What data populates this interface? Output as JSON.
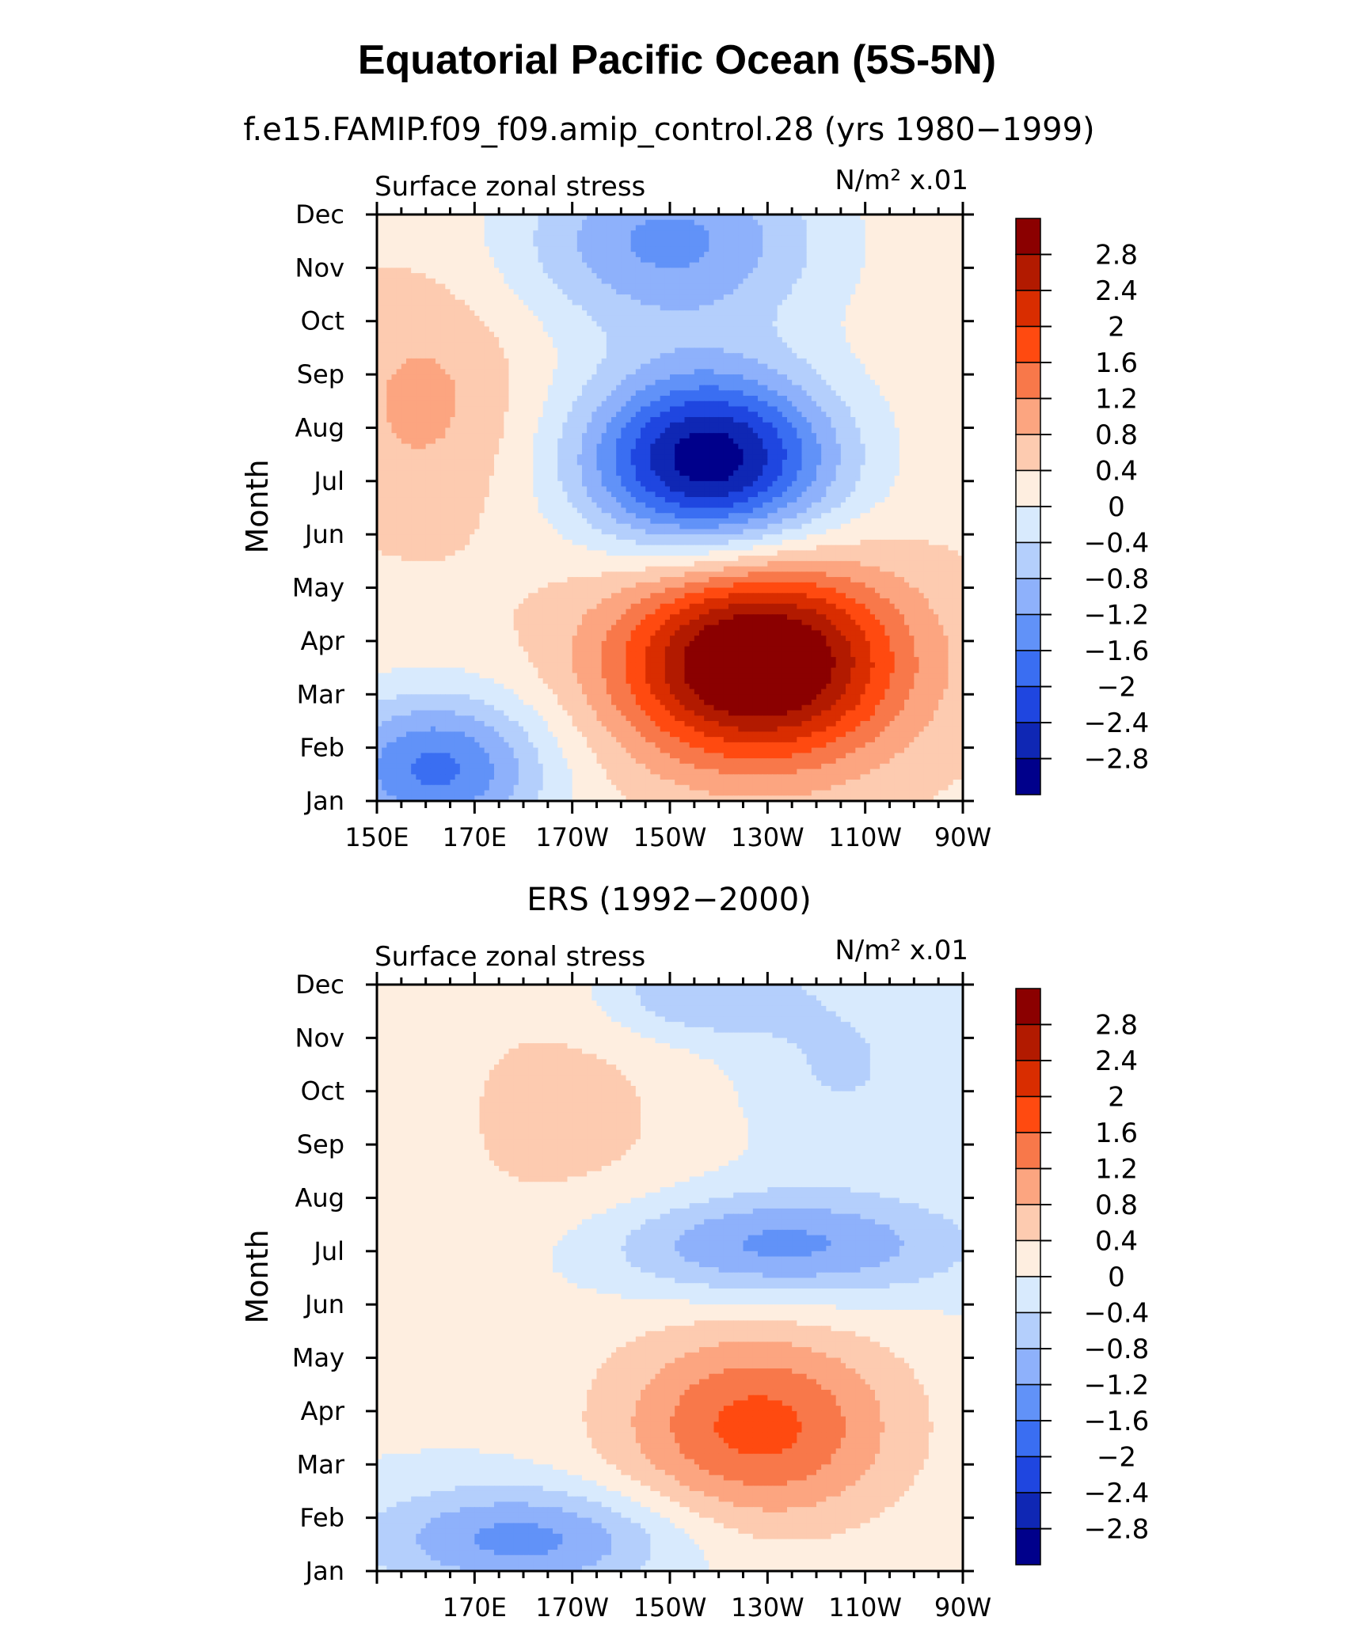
{
  "figure": {
    "title": "Equatorial Pacific Ocean (5S-5N)"
  },
  "chart_data": [
    {
      "type": "heatmap",
      "title": "f.e15.FAMIP.f09_f09.amip_control.28 (yrs 1980−1999)",
      "left_label": "Surface zonal stress",
      "right_label": "N/m² x.01",
      "ylabel": "Month",
      "xlabel": "",
      "x_tick_labels": [
        "150E",
        "170E",
        "170W",
        "150W",
        "130W",
        "110W",
        "90W"
      ],
      "x_tick_lons": [
        150,
        170,
        190,
        210,
        230,
        250,
        270
      ],
      "xlim": [
        150,
        270
      ],
      "y_tick_labels": [
        "Jan",
        "Feb",
        "Mar",
        "Apr",
        "May",
        "Jun",
        "Jul",
        "Aug",
        "Sep",
        "Oct",
        "Nov",
        "Dec"
      ],
      "ylim": [
        1,
        12
      ],
      "field": {
        "base": 0.3,
        "features": [
          {
            "lon": 218,
            "mon": 7.4,
            "amp": -3.4,
            "slon": 18,
            "smon": 1.2
          },
          {
            "lon": 228,
            "mon": 3.6,
            "amp": 3.4,
            "slon": 20,
            "smon": 1.3
          },
          {
            "lon": 162,
            "mon": 1.6,
            "amp": -2.0,
            "slon": 16,
            "smon": 1.0
          },
          {
            "lon": 210,
            "mon": 11.5,
            "amp": -1.6,
            "slon": 22,
            "smon": 1.2
          },
          {
            "lon": 160,
            "mon": 8.5,
            "amp": 0.6,
            "slon": 14,
            "smon": 1.6
          }
        ]
      }
    },
    {
      "type": "heatmap",
      "title": "ERS (1992−2000)",
      "left_label": "Surface zonal stress",
      "right_label": "N/m² x.01",
      "ylabel": "Month",
      "xlabel": "",
      "x_tick_labels": [
        "170E",
        "170W",
        "150W",
        "130W",
        "110W",
        "90W"
      ],
      "x_tick_lons": [
        170,
        190,
        210,
        230,
        250,
        270
      ],
      "xlim": [
        150,
        270
      ],
      "y_tick_labels": [
        "Jan",
        "Feb",
        "Mar",
        "Apr",
        "May",
        "Jun",
        "Jul",
        "Aug",
        "Sep",
        "Oct",
        "Nov",
        "Dec"
      ],
      "ylim": [
        1,
        12
      ],
      "field": {
        "base": 0.05,
        "features": [
          {
            "lon": 228,
            "mon": 3.7,
            "amp": 1.7,
            "slon": 20,
            "smon": 1.3
          },
          {
            "lon": 232,
            "mon": 7.1,
            "amp": -1.4,
            "slon": 26,
            "smon": 0.7
          },
          {
            "lon": 180,
            "mon": 1.6,
            "amp": -1.4,
            "slon": 22,
            "smon": 0.7
          },
          {
            "lon": 188,
            "mon": 9.5,
            "amp": 0.5,
            "slon": 20,
            "smon": 2.0
          },
          {
            "lon": 215,
            "mon": 11.8,
            "amp": -0.9,
            "slon": 14,
            "smon": 0.6
          },
          {
            "lon": 245,
            "mon": 10.5,
            "amp": -0.5,
            "slon": 14,
            "smon": 1.2
          }
        ]
      }
    }
  ],
  "colorbar": {
    "labels": [
      "2.8",
      "2.4",
      "2",
      "1.6",
      "1.2",
      "0.8",
      "0.4",
      "0",
      "−0.4",
      "−0.8",
      "−1.2",
      "−1.6",
      "−2",
      "−2.4",
      "−2.8"
    ],
    "levels": [
      2.8,
      2.4,
      2,
      1.6,
      1.2,
      0.8,
      0.4,
      0,
      -0.4,
      -0.8,
      -1.2,
      -1.6,
      -2,
      -2.4,
      -2.8
    ],
    "colors": [
      "#8b0000",
      "#b21a00",
      "#d92d00",
      "#ff4a10",
      "#f8784a",
      "#fca580",
      "#fdcbb0",
      "#feeee0",
      "#d8eafd",
      "#b4cffc",
      "#8eb1fb",
      "#6192f8",
      "#3a6ef2",
      "#1f46e0",
      "#0f27b4",
      "#00008b"
    ]
  }
}
